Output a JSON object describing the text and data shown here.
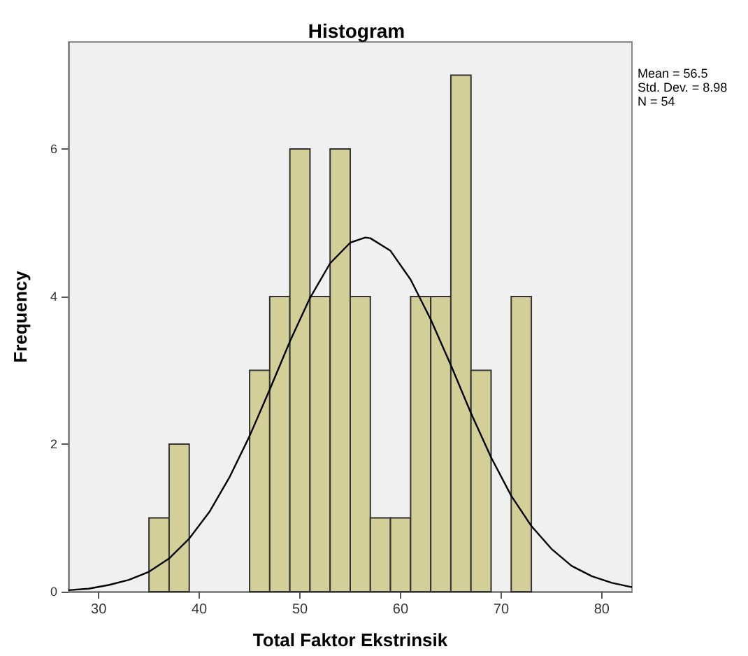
{
  "chart_data": {
    "type": "histogram",
    "title": "Histogram",
    "xlabel": "Total Faktor Ekstrinsik",
    "ylabel": "Frequency",
    "bins": [
      35,
      37,
      39,
      41,
      43,
      45,
      47,
      49,
      51,
      53,
      55,
      57,
      59,
      61,
      63,
      65,
      67,
      69,
      71,
      73
    ],
    "values": [
      1,
      2,
      0,
      0,
      0,
      3,
      4,
      6,
      4,
      6,
      4,
      1,
      1,
      4,
      4,
      7,
      3,
      0,
      4
    ],
    "color": "#d3cf98",
    "series": [
      {
        "type": "line",
        "color": "#000000",
        "x": [
          27,
          29,
          31,
          33,
          35,
          37,
          39,
          41,
          43,
          45,
          47,
          49,
          51,
          53,
          55,
          56.5,
          57,
          59,
          61,
          63,
          65,
          67,
          69,
          71,
          73,
          75,
          77,
          79,
          81,
          83
        ],
        "values": [
          0.02,
          0.04,
          0.09,
          0.16,
          0.27,
          0.45,
          0.72,
          1.08,
          1.55,
          2.11,
          2.74,
          3.39,
          3.98,
          4.45,
          4.73,
          4.8,
          4.79,
          4.62,
          4.23,
          3.69,
          3.07,
          2.42,
          1.82,
          1.3,
          0.89,
          0.58,
          0.35,
          0.21,
          0.12,
          0.06
        ]
      }
    ],
    "xlim": [
      27,
      83
    ],
    "ylim": [
      0,
      7.45
    ],
    "xticks": [
      30,
      40,
      50,
      60,
      70,
      80
    ],
    "yticks": [
      0,
      2,
      4,
      6
    ],
    "annotations": [
      "Mean = 56.5",
      "Std. Dev. = 8.98",
      "N = 54"
    ],
    "grid": false
  }
}
